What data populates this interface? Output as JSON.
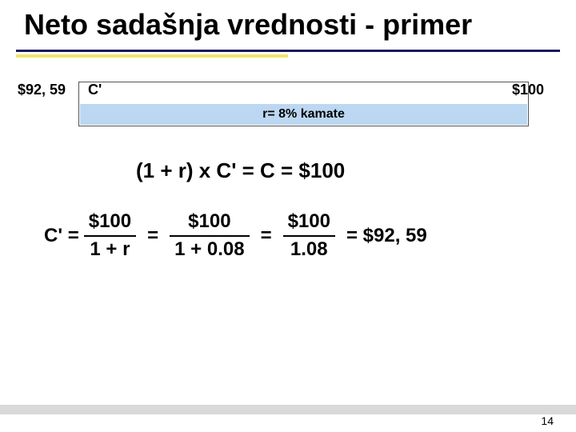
{
  "title": "Neto sadašnja vrednosti - primer",
  "timeline": {
    "left_value": "$92, 59",
    "c_prime": "C'",
    "right_value": "$100",
    "rate_label": "r= 8% kamate",
    "box_fill": "#bcd7f2"
  },
  "equation1": "(1 + r) x C' = C = $100",
  "equation2": {
    "lhs": "C' =",
    "f1": {
      "num": "$100",
      "den": "1 + r"
    },
    "eq1": "=",
    "f2": {
      "num": "$100",
      "den": "1 + 0.08"
    },
    "eq2": "=",
    "f3": {
      "num": "$100",
      "den": "1.08"
    },
    "result": "= $92, 59"
  },
  "page_number": "14",
  "colors": {
    "title_line": "#1a1a5a",
    "title_underline": "#f3e36a",
    "footer": "#d9d9d9"
  },
  "typography": {
    "title_fontsize": 36,
    "body_fontsize": 24,
    "label_fontsize": 18
  }
}
